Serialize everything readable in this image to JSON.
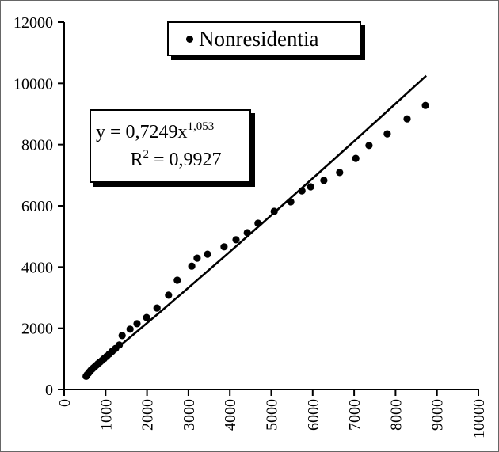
{
  "legend": {
    "label": "Nonresidentia"
  },
  "annotation": {
    "equation_base": "y = 0,7249x",
    "equation_exponent": "1,053",
    "r_base": "R",
    "r_sup": "2",
    "r_rest": " = 0,9927"
  },
  "chart_data": {
    "type": "scatter",
    "title": "",
    "xlabel": "",
    "ylabel": "",
    "grid": false,
    "legend_position": "top-center",
    "series": [
      {
        "name": "Nonresidentia",
        "marker": "filled-circle",
        "color": "#000000",
        "points": [
          [
            530,
            430
          ],
          [
            555,
            480
          ],
          [
            585,
            530
          ],
          [
            615,
            580
          ],
          [
            645,
            625
          ],
          [
            675,
            665
          ],
          [
            705,
            705
          ],
          [
            740,
            745
          ],
          [
            780,
            795
          ],
          [
            820,
            845
          ],
          [
            865,
            895
          ],
          [
            915,
            950
          ],
          [
            965,
            1010
          ],
          [
            1025,
            1080
          ],
          [
            1090,
            1160
          ],
          [
            1160,
            1250
          ],
          [
            1240,
            1340
          ],
          [
            1330,
            1450
          ],
          [
            1400,
            1760
          ],
          [
            1590,
            1970
          ],
          [
            1760,
            2150
          ],
          [
            1990,
            2350
          ],
          [
            2240,
            2660
          ],
          [
            2520,
            3080
          ],
          [
            2730,
            3570
          ],
          [
            3080,
            4030
          ],
          [
            3210,
            4290
          ],
          [
            3460,
            4420
          ],
          [
            3860,
            4660
          ],
          [
            4150,
            4890
          ],
          [
            4420,
            5120
          ],
          [
            4680,
            5430
          ],
          [
            5070,
            5820
          ],
          [
            5470,
            6130
          ],
          [
            5740,
            6490
          ],
          [
            5950,
            6620
          ],
          [
            6270,
            6830
          ],
          [
            6650,
            7090
          ],
          [
            7040,
            7550
          ],
          [
            7360,
            7970
          ],
          [
            7800,
            8350
          ],
          [
            8280,
            8840
          ],
          [
            8720,
            9280
          ]
        ]
      }
    ],
    "trendline": {
      "type": "power",
      "coefficient": 0.7249,
      "exponent": 1.053,
      "r_squared": 0.9927,
      "x_range": [
        480,
        8740
      ],
      "color": "#000000"
    },
    "axes": {
      "x": {
        "min": 0,
        "max": 10000,
        "tick_step": 1000,
        "labels": [
          "0",
          "1000",
          "2000",
          "3000",
          "4000",
          "5000",
          "6000",
          "7000",
          "8000",
          "9000",
          "10000"
        ],
        "label_rotation": -90
      },
      "y": {
        "min": 0,
        "max": 12000,
        "tick_step": 2000,
        "labels": [
          "0",
          "2000",
          "4000",
          "6000",
          "8000",
          "10000",
          "12000"
        ]
      }
    }
  }
}
